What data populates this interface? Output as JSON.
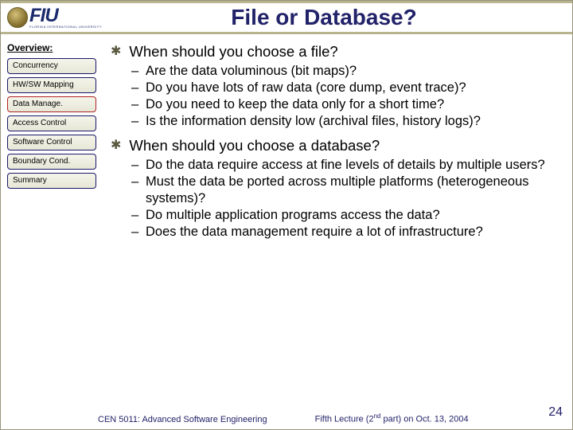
{
  "header": {
    "logo": {
      "big": "FIU",
      "small": "FLORIDA INTERNATIONAL UNIVERSITY"
    },
    "title": "File or Database?"
  },
  "sidebar": {
    "heading": "Overview:",
    "items": [
      {
        "label": "Concurrency",
        "active": false
      },
      {
        "label": "HW/SW Mapping",
        "active": false
      },
      {
        "label": "Data Manage.",
        "active": true
      },
      {
        "label": "Access Control",
        "active": false
      },
      {
        "label": "Software Control",
        "active": false
      },
      {
        "label": "Boundary Cond.",
        "active": false
      },
      {
        "label": "Summary",
        "active": false
      }
    ]
  },
  "content": {
    "sections": [
      {
        "question": "When should you  choose a file?",
        "points": [
          "Are the data voluminous (bit maps)?",
          "Do you have lots of raw data (core dump, event trace)?",
          "Do you need to keep the data only for a short time?",
          "Is the information density low (archival files, history logs)?"
        ]
      },
      {
        "question": "When should you choose a database?",
        "points": [
          "Do the data require access at fine levels of details by multiple users?",
          "Must the data be ported across multiple platforms (heterogeneous systems)?",
          "Do multiple application programs access the data?",
          "Does the data management require a lot of infrastructure?"
        ]
      }
    ]
  },
  "footer": {
    "left": "CEN 5011: Advanced Software Engineering",
    "mid_pre": "Fifth Lecture (2",
    "mid_sup": "nd",
    "mid_post": " part) on Oct. 13, 2004",
    "page": "24"
  },
  "colors": {
    "title": "#22226a",
    "band_border": "#b8b490",
    "nav_border": "#18186a",
    "nav_active": "#b02020",
    "bullet": "#5a5a40"
  }
}
